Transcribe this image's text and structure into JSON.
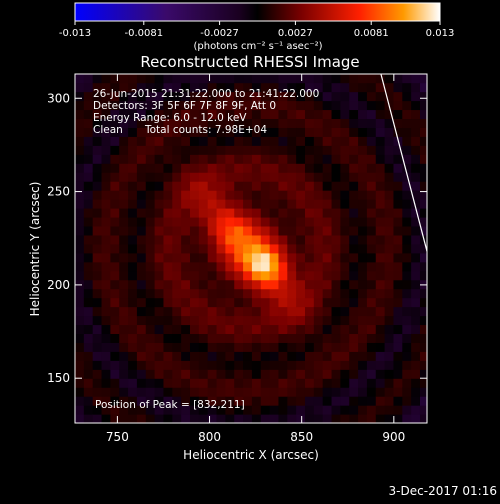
{
  "colorbar": {
    "ticks": [
      "-0.013",
      "-0.0081",
      "-0.0027",
      "0.0027",
      "0.0081",
      "0.013"
    ],
    "unit_label": "(photons cm⁻² s⁻¹ asec⁻²)",
    "colors": [
      "#0000ff",
      "#3a0a6a",
      "#1a0020",
      "#000000",
      "#7a0000",
      "#ff2000",
      "#ff9a00",
      "#ffffff"
    ]
  },
  "chart_data": {
    "type": "heatmap",
    "title": "Reconstructed RHESSI Image",
    "xlabel": "Heliocentric X (arcsec)",
    "ylabel": "Heliocentric Y (arcsec)",
    "xlim": [
      727,
      918
    ],
    "ylim": [
      126,
      313
    ],
    "x_ticks": [
      750,
      800,
      850,
      900
    ],
    "y_ticks": [
      150,
      200,
      250,
      300
    ],
    "value_range": [
      -0.013,
      0.013
    ],
    "peak": [
      832,
      211
    ],
    "annotations": [
      "26-Jun-2015 21:31:22.000 to 21:41:22.000",
      "Detectors: 3F 5F 6F 7F 8F 9F, Att 0",
      "Energy Range: 6.0 - 12.0 keV",
      "Clean",
      "Total counts: 7.98E+04",
      "Position of Peak = [832,211]"
    ],
    "limb_line": [
      [
        893,
        313
      ],
      [
        918,
        218
      ]
    ]
  },
  "footer": {
    "timestamp": "3-Dec-2017 01:16"
  }
}
